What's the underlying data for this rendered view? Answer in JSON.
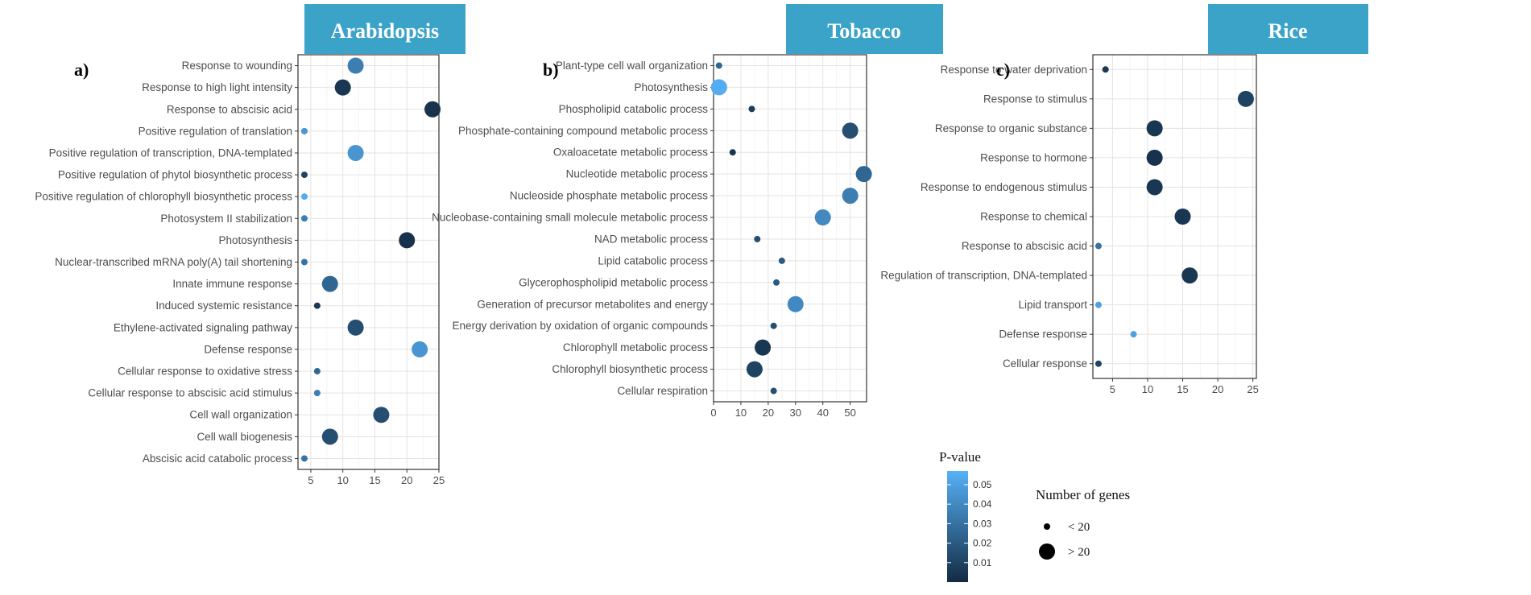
{
  "chart_data": [
    {
      "type": "scatter",
      "title": "Arabidopsis",
      "panel_label": "a)",
      "xlim": [
        3,
        25
      ],
      "xticks": [
        5,
        10,
        15,
        20,
        25
      ],
      "categories": [
        "Response to wounding",
        "Response to high light intensity",
        "Response to abscisic acid",
        "Positive regulation of translation",
        "Positive regulation of transcription, DNA-templated",
        "Positive regulation of phytol biosynthetic process",
        "Positive regulation of chlorophyll biosynthetic process",
        "Photosystem II stabilization",
        "Photosynthesis",
        "Nuclear-transcribed mRNA poly(A) tail shortening",
        "Innate immune response",
        "Induced systemic resistance",
        "Ethylene-activated signaling pathway",
        "Defense response",
        "Cellular response to oxidative stress",
        "Cellular response to abscisic acid stimulus",
        "Cell wall organization",
        "Cell wall biogenesis",
        "Abscisic acid catabolic process"
      ],
      "values": [
        12,
        10,
        24,
        4,
        12,
        4,
        4,
        4,
        20,
        4,
        8,
        6,
        12,
        22,
        6,
        6,
        16,
        8,
        4
      ],
      "pvalues": [
        0.035,
        0.005,
        0.003,
        0.045,
        0.045,
        0.01,
        0.055,
        0.035,
        0.003,
        0.03,
        0.025,
        0.005,
        0.015,
        0.045,
        0.025,
        0.035,
        0.015,
        0.015,
        0.03
      ],
      "size_class": [
        "large",
        "large",
        "large",
        "small",
        "large",
        "small",
        "small",
        "small",
        "large",
        "small",
        "large",
        "small",
        "large",
        "large",
        "small",
        "small",
        "large",
        "large",
        "small"
      ]
    },
    {
      "type": "scatter",
      "title": "Tobacco",
      "panel_label": "b)",
      "xlim": [
        0,
        56
      ],
      "xticks": [
        0,
        10,
        20,
        30,
        40,
        50
      ],
      "categories": [
        "Plant-type cell wall organization",
        "Photosynthesis",
        "Phospholipid catabolic process",
        "Phosphate-containing compound metabolic process",
        "Oxaloacetate metabolic process",
        "Nucleotide metabolic process",
        "Nucleoside phosphate metabolic process",
        "Nucleobase-containing small molecule metabolic process",
        "NAD metabolic process",
        "Lipid catabolic process",
        "Glycerophospholipid metabolic process",
        "Generation of precursor metabolites and energy",
        "Energy derivation by oxidation of organic compounds",
        "Chlorophyll metabolic process",
        "Chlorophyll biosynthetic process",
        "Cellular respiration"
      ],
      "values": [
        2,
        2,
        14,
        50,
        7,
        55,
        50,
        40,
        16,
        25,
        23,
        30,
        22,
        18,
        15,
        22
      ],
      "pvalues": [
        0.025,
        0.055,
        0.008,
        0.015,
        0.005,
        0.025,
        0.035,
        0.04,
        0.015,
        0.02,
        0.02,
        0.04,
        0.015,
        0.005,
        0.01,
        0.015
      ],
      "size_class": [
        "small",
        "large",
        "small",
        "large",
        "small",
        "large",
        "large",
        "large",
        "small",
        "small",
        "small",
        "large",
        "small",
        "large",
        "large",
        "small"
      ]
    },
    {
      "type": "scatter",
      "title": "Rice",
      "panel_label": "c)",
      "xlim": [
        2.2,
        25.5
      ],
      "xticks": [
        5,
        10,
        15,
        20,
        25
      ],
      "categories": [
        "Response to water deprivation",
        "Response to stimulus",
        "Response to organic substance",
        "Response to hormone",
        "Response to endogenous stimulus",
        "Response to chemical",
        "Response to abscisic acid",
        "Regulation of transcription, DNA-templated",
        "Lipid transport",
        "Defense response",
        "Cellular response"
      ],
      "values": [
        4,
        24,
        11,
        11,
        11,
        15,
        3,
        16,
        3,
        8,
        3
      ],
      "pvalues": [
        0.005,
        0.01,
        0.005,
        0.003,
        0.005,
        0.005,
        0.03,
        0.005,
        0.05,
        0.05,
        0.01
      ],
      "size_class": [
        "small",
        "large",
        "large",
        "large",
        "large",
        "large",
        "small",
        "large",
        "small",
        "small",
        "small"
      ]
    }
  ],
  "colorbar": {
    "title": "P-value",
    "ticks": [
      "0.05",
      "0.04",
      "0.03",
      "0.02",
      "0.01"
    ],
    "range": [
      0.0,
      0.057
    ],
    "colors": [
      "#132b43",
      "#56b1f7"
    ]
  },
  "size_legend": {
    "title": "Number of genes",
    "items": [
      "< 20",
      "> 20"
    ]
  }
}
